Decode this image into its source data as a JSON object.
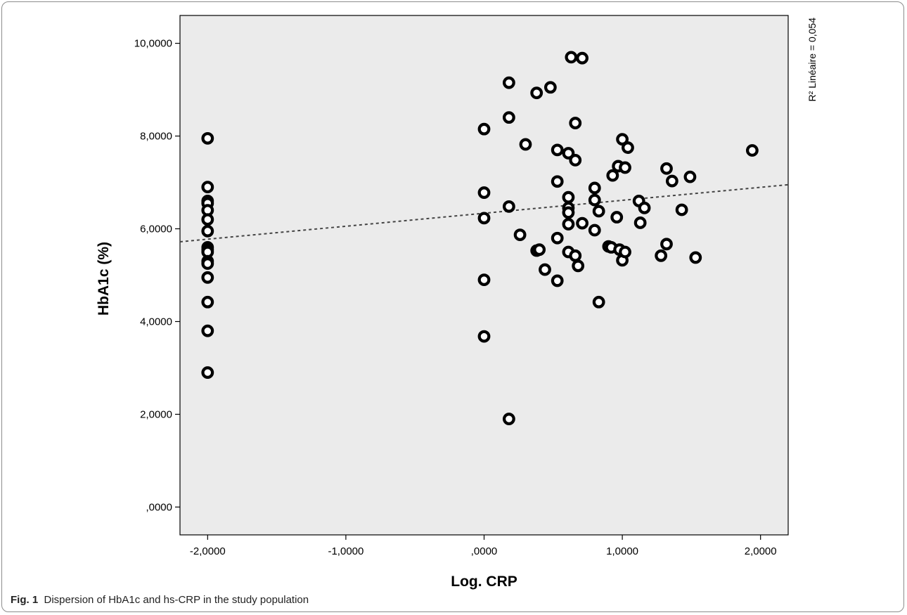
{
  "caption": {
    "label": "Fig. 1",
    "text": "Dispersion of HbA1c and hs-CRP in the study population"
  },
  "chart_data": {
    "type": "scatter",
    "xlabel": "Log. CRP",
    "ylabel": "HbA1c (%)",
    "xlim": [
      -2.2,
      2.2
    ],
    "ylim": [
      -0.6,
      10.6
    ],
    "xticks": [
      -2,
      -1,
      0,
      1,
      2
    ],
    "xtick_labels": [
      "-2,0000",
      "-1,0000",
      ",0000",
      "1,0000",
      "2,0000"
    ],
    "yticks": [
      0,
      2,
      4,
      6,
      8,
      10
    ],
    "ytick_labels": [
      ",0000",
      "2,0000",
      "4,0000",
      "6,0000",
      "8,0000",
      "10,0000"
    ],
    "fit_line": {
      "type": "linear",
      "label": "R² Linéaire = 0,054",
      "x": [
        -2.2,
        2.2
      ],
      "y": [
        5.72,
        6.95
      ]
    },
    "grid": false,
    "background": "#ebebeb",
    "points": [
      {
        "x": -2.0,
        "y": 7.95
      },
      {
        "x": -2.0,
        "y": 6.9
      },
      {
        "x": -2.0,
        "y": 6.6
      },
      {
        "x": -2.0,
        "y": 6.55
      },
      {
        "x": -2.0,
        "y": 6.4
      },
      {
        "x": -2.0,
        "y": 6.2
      },
      {
        "x": -2.0,
        "y": 5.95
      },
      {
        "x": -2.0,
        "y": 5.6
      },
      {
        "x": -2.0,
        "y": 5.55
      },
      {
        "x": -2.0,
        "y": 5.5
      },
      {
        "x": -2.0,
        "y": 5.3
      },
      {
        "x": -2.0,
        "y": 5.25
      },
      {
        "x": -2.0,
        "y": 4.95
      },
      {
        "x": -2.0,
        "y": 4.42
      },
      {
        "x": -2.0,
        "y": 3.8
      },
      {
        "x": -2.0,
        "y": 2.9
      },
      {
        "x": 0.0,
        "y": 8.15
      },
      {
        "x": 0.0,
        "y": 6.78
      },
      {
        "x": 0.0,
        "y": 6.23
      },
      {
        "x": 0.0,
        "y": 4.9
      },
      {
        "x": 0.0,
        "y": 3.68
      },
      {
        "x": 0.18,
        "y": 9.15
      },
      {
        "x": 0.18,
        "y": 8.4
      },
      {
        "x": 0.18,
        "y": 6.48
      },
      {
        "x": 0.18,
        "y": 1.9
      },
      {
        "x": 0.26,
        "y": 5.87
      },
      {
        "x": 0.3,
        "y": 7.82
      },
      {
        "x": 0.38,
        "y": 8.93
      },
      {
        "x": 0.38,
        "y": 5.53
      },
      {
        "x": 0.4,
        "y": 5.55
      },
      {
        "x": 0.44,
        "y": 5.12
      },
      {
        "x": 0.48,
        "y": 9.05
      },
      {
        "x": 0.53,
        "y": 7.7
      },
      {
        "x": 0.53,
        "y": 7.02
      },
      {
        "x": 0.53,
        "y": 5.8
      },
      {
        "x": 0.53,
        "y": 4.88
      },
      {
        "x": 0.61,
        "y": 7.63
      },
      {
        "x": 0.61,
        "y": 6.68
      },
      {
        "x": 0.61,
        "y": 6.45
      },
      {
        "x": 0.61,
        "y": 6.35
      },
      {
        "x": 0.61,
        "y": 6.1
      },
      {
        "x": 0.61,
        "y": 5.5
      },
      {
        "x": 0.63,
        "y": 9.7
      },
      {
        "x": 0.66,
        "y": 8.28
      },
      {
        "x": 0.66,
        "y": 7.48
      },
      {
        "x": 0.66,
        "y": 5.42
      },
      {
        "x": 0.68,
        "y": 5.2
      },
      {
        "x": 0.71,
        "y": 9.68
      },
      {
        "x": 0.71,
        "y": 6.12
      },
      {
        "x": 0.8,
        "y": 6.88
      },
      {
        "x": 0.8,
        "y": 6.62
      },
      {
        "x": 0.8,
        "y": 5.97
      },
      {
        "x": 0.83,
        "y": 6.38
      },
      {
        "x": 0.83,
        "y": 4.42
      },
      {
        "x": 0.9,
        "y": 5.62
      },
      {
        "x": 0.92,
        "y": 5.6
      },
      {
        "x": 0.93,
        "y": 7.15
      },
      {
        "x": 0.96,
        "y": 6.25
      },
      {
        "x": 0.97,
        "y": 7.35
      },
      {
        "x": 0.98,
        "y": 5.55
      },
      {
        "x": 1.0,
        "y": 7.93
      },
      {
        "x": 1.0,
        "y": 5.32
      },
      {
        "x": 1.02,
        "y": 7.32
      },
      {
        "x": 1.02,
        "y": 5.5
      },
      {
        "x": 1.04,
        "y": 7.75
      },
      {
        "x": 1.12,
        "y": 6.6
      },
      {
        "x": 1.13,
        "y": 6.13
      },
      {
        "x": 1.16,
        "y": 6.45
      },
      {
        "x": 1.28,
        "y": 5.42
      },
      {
        "x": 1.32,
        "y": 7.3
      },
      {
        "x": 1.32,
        "y": 5.67
      },
      {
        "x": 1.36,
        "y": 7.03
      },
      {
        "x": 1.43,
        "y": 6.41
      },
      {
        "x": 1.49,
        "y": 7.12
      },
      {
        "x": 1.53,
        "y": 5.38
      },
      {
        "x": 1.94,
        "y": 7.69
      }
    ]
  }
}
